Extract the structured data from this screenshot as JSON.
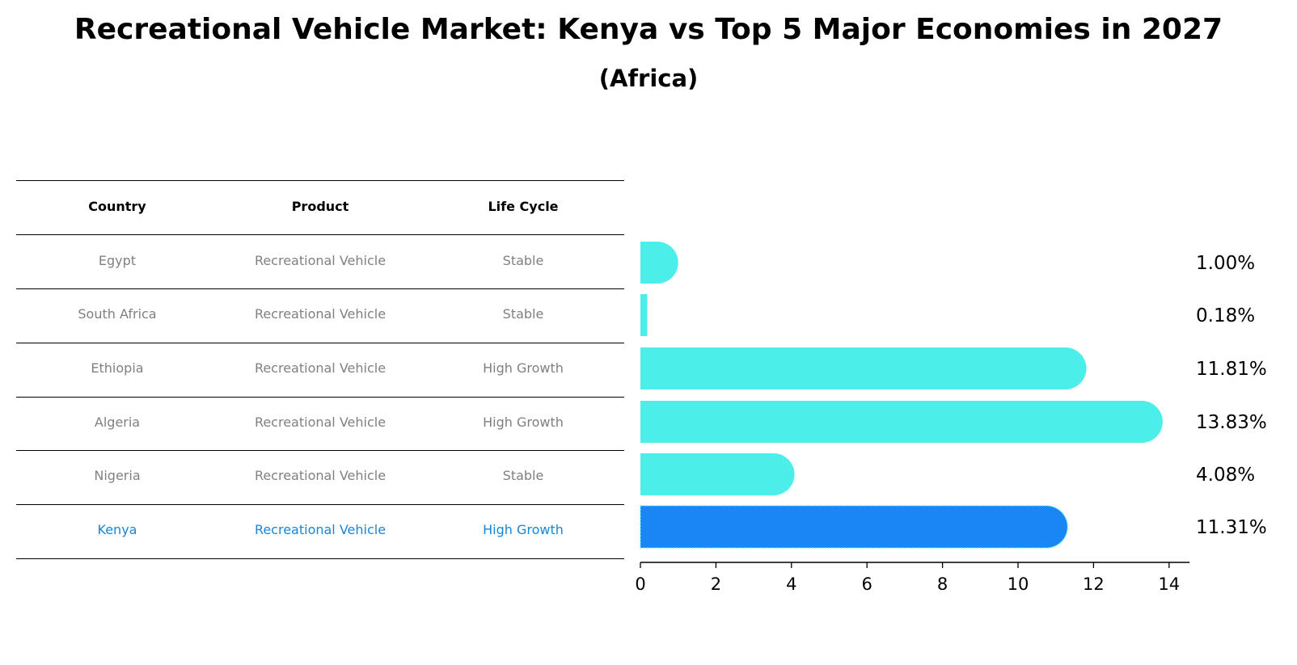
{
  "title": "Recreational Vehicle Market: Kenya vs Top 5 Major Economies in 2027",
  "subtitle": "(Africa)",
  "table": {
    "headers": [
      "Country",
      "Product",
      "Life Cycle"
    ],
    "rows": [
      {
        "country": "Egypt",
        "product": "Recreational Vehicle",
        "life_cycle": "Stable",
        "highlight": false
      },
      {
        "country": "South Africa",
        "product": "Recreational Vehicle",
        "life_cycle": "Stable",
        "highlight": false
      },
      {
        "country": "Ethiopia",
        "product": "Recreational Vehicle",
        "life_cycle": "High Growth",
        "highlight": false
      },
      {
        "country": "Algeria",
        "product": "Recreational Vehicle",
        "life_cycle": "High Growth",
        "highlight": false
      },
      {
        "country": "Nigeria",
        "product": "Recreational Vehicle",
        "life_cycle": "Stable",
        "highlight": false
      },
      {
        "country": "Kenya",
        "product": "Recreational Vehicle",
        "life_cycle": "High Growth",
        "highlight": true
      }
    ]
  },
  "colors": {
    "bar": "#4ceeea",
    "highlight_bar": "#1a85f5",
    "highlight_text": "#1a85d6",
    "text_muted": "#808080"
  },
  "chart_data": {
    "type": "bar",
    "orientation": "horizontal",
    "title": "Recreational Vehicle Market: Kenya vs Top 5 Major Economies in 2027",
    "subtitle": "(Africa)",
    "categories": [
      "Egypt",
      "South Africa",
      "Ethiopia",
      "Algeria",
      "Nigeria",
      "Kenya"
    ],
    "values": [
      1.0,
      0.18,
      11.81,
      13.83,
      4.08,
      11.31
    ],
    "value_labels": [
      "1.00%",
      "0.18%",
      "11.81%",
      "13.83%",
      "4.08%",
      "11.31%"
    ],
    "highlight_category": "Kenya",
    "xlim": [
      0,
      14.5
    ],
    "xticks": [
      0,
      2,
      4,
      6,
      8,
      10,
      12,
      14
    ],
    "xlabel": "",
    "ylabel": "",
    "grid": false,
    "legend": "none"
  }
}
